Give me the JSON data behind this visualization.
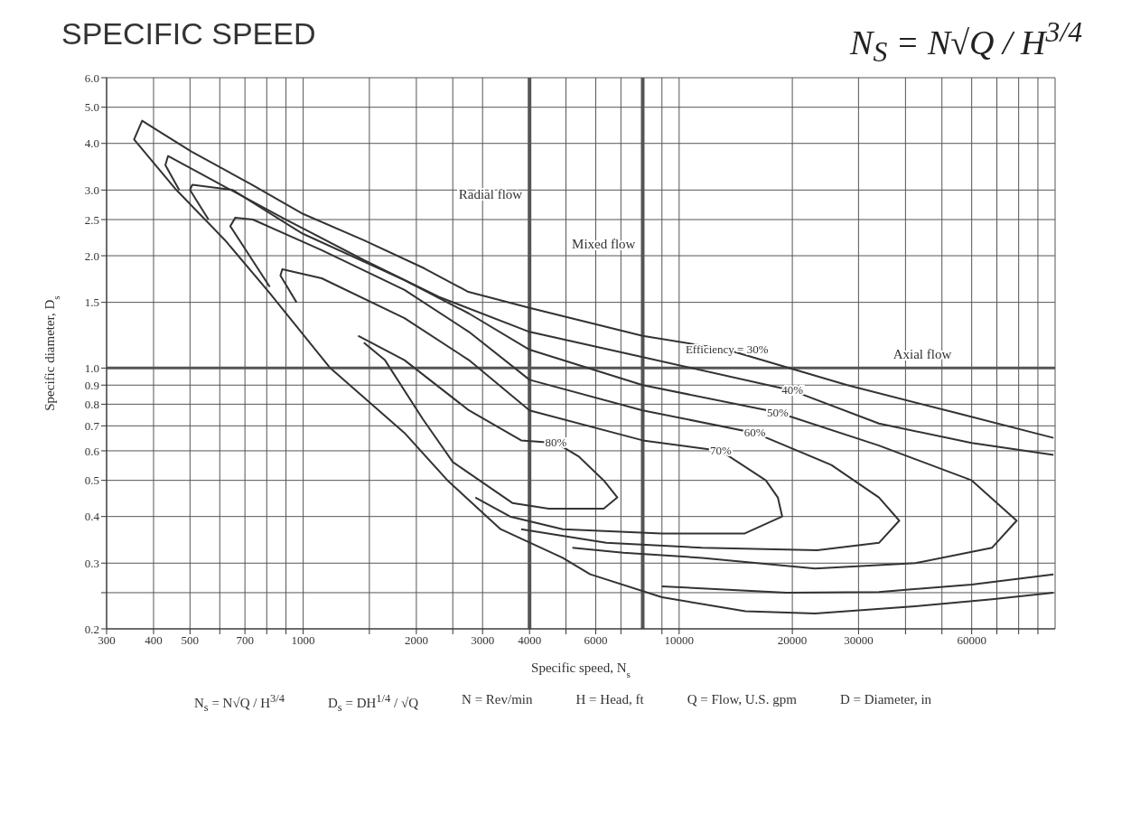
{
  "chart_data": {
    "type": "line",
    "title": "SPECIFIC SPEED",
    "subtitle": "N$_{S}$ = N√Q / H$^{3/4}$",
    "xlabel": "Specific speed, N$_{s}$",
    "ylabel": "Specific diameter, D$_{s}$",
    "log": "xy",
    "grid": true,
    "legend": false,
    "marker": "none",
    "line_style": "solid",
    "xlim": [
      300,
      100000
    ],
    "ylim": [
      0.2,
      6
    ],
    "xticks": [
      300,
      400,
      500,
      {
        "value": 600,
        "label": null
      },
      700,
      {
        "value": 800,
        "label": null
      },
      {
        "value": 900,
        "label": null
      },
      1000,
      {
        "value": 1500,
        "label": null
      },
      2000,
      {
        "value": 2500,
        "label": null
      },
      3000,
      4000,
      {
        "value": 5000,
        "label": null
      },
      6000,
      {
        "value": 7000,
        "label": null
      },
      {
        "value": 9000,
        "label": null
      },
      10000,
      20000,
      30000,
      {
        "value": 40000,
        "label": null
      },
      {
        "value": 50000,
        "label": null
      },
      60000,
      {
        "value": 70000,
        "label": null
      },
      {
        "value": 80000,
        "label": null
      },
      {
        "value": 90000,
        "label": null
      }
    ],
    "yticks": [
      {
        "value": 0.2,
        "label": "0.2"
      },
      {
        "value": 0.25,
        "label": null
      },
      0.3,
      0.4,
      0.5,
      0.6,
      0.7,
      0.8,
      0.9,
      {
        "value": 1,
        "label": "1.0"
      },
      1.5,
      {
        "value": 2,
        "label": "2.0"
      },
      2.5,
      {
        "value": 3,
        "label": "3.0"
      },
      {
        "value": 4,
        "label": "4.0"
      },
      {
        "value": 5,
        "label": "5.0"
      },
      {
        "value": 6,
        "label": "6.0"
      }
    ],
    "ref_lines": [
      {
        "axis": "x",
        "value": 4000,
        "color": "#555555",
        "label": "Radial flow"
      },
      {
        "axis": "x",
        "value": 8000,
        "color": "#555555",
        "label": "Mixed flow"
      },
      {
        "axis": "y",
        "value": 1,
        "color": "#555555",
        "label": "Axial flow"
      }
    ],
    "annotations": [
      "N$_{s}$ = N√Q / H$^{3/4}$",
      "D$_{s}$ = DH$^{1/4}$ / √Q",
      "N = Rev/min",
      "H = Head, ft",
      "Q = Flow, U.S. gpm",
      "D = Diameter, in"
    ],
    "series": [
      {
        "name": "Efficiency = 30%",
        "color": "#333333",
        "x": [
          99000,
          68000,
          42500,
          23000,
          15000,
          9000,
          5800,
          4900,
          3350,
          2420,
          1860,
          1180,
          810,
          620,
          460,
          355,
          373,
          400,
          505,
          730,
          990,
          1450,
          2100,
          2750,
          4000,
          8000,
          13400,
          28000,
          54000,
          99000
        ],
        "values": [
          0.25,
          0.24,
          0.23,
          0.22,
          0.223,
          0.243,
          0.28,
          0.31,
          0.37,
          0.5,
          0.67,
          1.0,
          1.6,
          2.2,
          3.0,
          4.1,
          4.6,
          4.4,
          3.8,
          3.1,
          2.6,
          2.2,
          1.85,
          1.6,
          1.45,
          1.22,
          1.12,
          0.9,
          0.76,
          0.65
        ]
      },
      {
        "color": "#333333",
        "x": [
          99000,
          60000,
          34000,
          19300,
          9000
        ],
        "values": [
          0.28,
          0.263,
          0.251,
          0.25,
          0.26
        ]
      },
      {
        "name": "40%",
        "color": "#333333",
        "x": [
          468,
          430,
          437,
          570,
          900,
          1460,
          2300,
          4000,
          8000,
          20000,
          34000,
          60000,
          99000
        ],
        "values": [
          3.0,
          3.5,
          3.7,
          3.2,
          2.5,
          1.94,
          1.55,
          1.25,
          1.07,
          0.87,
          0.71,
          0.63,
          0.585
        ]
      },
      {
        "name": "50%",
        "color": "#333333",
        "x": [
          560,
          500,
          507,
          650,
          990,
          1860,
          2760,
          4000,
          8000,
          18300,
          34000,
          60000,
          79000,
          68000,
          42500,
          23000,
          11500,
          7100,
          5200
        ],
        "values": [
          2.5,
          3.0,
          3.1,
          3.0,
          2.3,
          1.72,
          1.4,
          1.12,
          0.9,
          0.76,
          0.62,
          0.5,
          0.39,
          0.33,
          0.3,
          0.29,
          0.31,
          0.32,
          0.33
        ]
      },
      {
        "name": "60%",
        "color": "#333333",
        "x": [
          815,
          640,
          660,
          735,
          1120,
          1860,
          2760,
          4000,
          8000,
          15900,
          25400,
          34000,
          38500,
          34000,
          23300,
          11500,
          6400,
          3800
        ],
        "values": [
          1.65,
          2.4,
          2.53,
          2.5,
          2.07,
          1.62,
          1.25,
          0.93,
          0.77,
          0.67,
          0.55,
          0.45,
          0.39,
          0.34,
          0.325,
          0.33,
          0.34,
          0.37
        ]
      },
      {
        "name": "70%",
        "color": "#333333",
        "x": [
          960,
          870,
          880,
          1120,
          1860,
          2760,
          4000,
          8000,
          12900,
          17000,
          18300,
          18800,
          14900,
          9000,
          4900,
          3550,
          2870
        ],
        "values": [
          1.5,
          1.77,
          1.84,
          1.74,
          1.36,
          1.05,
          0.77,
          0.64,
          0.6,
          0.5,
          0.45,
          0.4,
          0.36,
          0.36,
          0.37,
          0.4,
          0.45
        ]
      },
      {
        "name": "80%",
        "color": "#333333",
        "x": [
          1400,
          1860,
          2760,
          3800,
          4700,
          5400,
          6300,
          6850,
          6300,
          4500,
          3600,
          2500,
          2080,
          1650,
          1450
        ],
        "values": [
          1.22,
          1.05,
          0.77,
          0.64,
          0.63,
          0.58,
          0.5,
          0.45,
          0.42,
          0.42,
          0.435,
          0.56,
          0.73,
          1.05,
          1.17
        ]
      }
    ]
  }
}
